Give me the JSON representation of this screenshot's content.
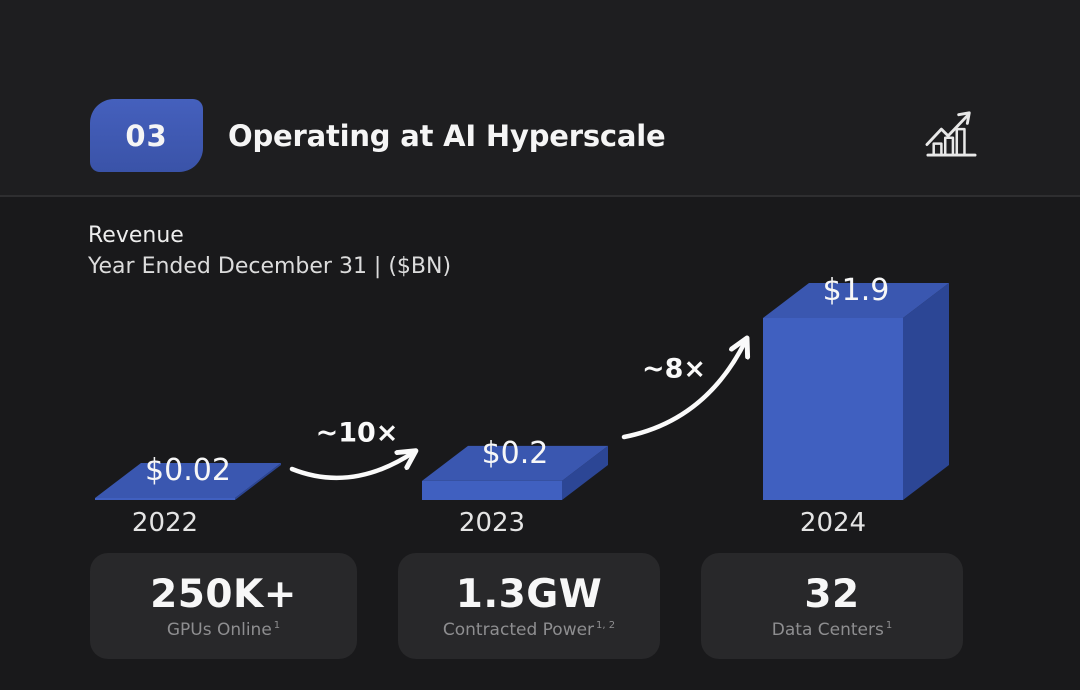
{
  "colors": {
    "header_background": "#1e1e20",
    "body_background": "#19191b",
    "divider": "#2e2e30",
    "accent_blue": "#3e58b2",
    "card_background": "#28282a",
    "text_primary": "#f5f5f5",
    "text_secondary": "#8e8e90"
  },
  "header": {
    "badge": "03",
    "title": "Operating at AI Hyperscale",
    "icon": "bar-chart-growth-icon"
  },
  "chart_data": {
    "type": "bar",
    "style": "3d-isometric-bars",
    "title": "Revenue",
    "subtitle": "Year Ended December 31  |  ($BN)",
    "unit": "$BN",
    "categories": [
      "2022",
      "2023",
      "2024"
    ],
    "values": [
      0.02,
      0.2,
      1.9
    ],
    "value_labels": [
      "$0.02",
      "$0.2",
      "$1.9"
    ],
    "annotations": [
      {
        "text": "~10×",
        "from": "2022",
        "to": "2023"
      },
      {
        "text": "~8×",
        "from": "2023",
        "to": "2024"
      }
    ],
    "ylim": [
      0,
      1.9
    ],
    "grid": false,
    "legend": false,
    "bar_colors": {
      "front": "#4060c0",
      "top": "#3a57b0",
      "side": "#2c4695"
    }
  },
  "stats": [
    {
      "value": "250K+",
      "label": "GPUs Online",
      "footnote": "1"
    },
    {
      "value": "1.3GW",
      "label": "Contracted Power",
      "footnote": "1, 2"
    },
    {
      "value": "32",
      "label": "Data Centers",
      "footnote": "1"
    }
  ]
}
